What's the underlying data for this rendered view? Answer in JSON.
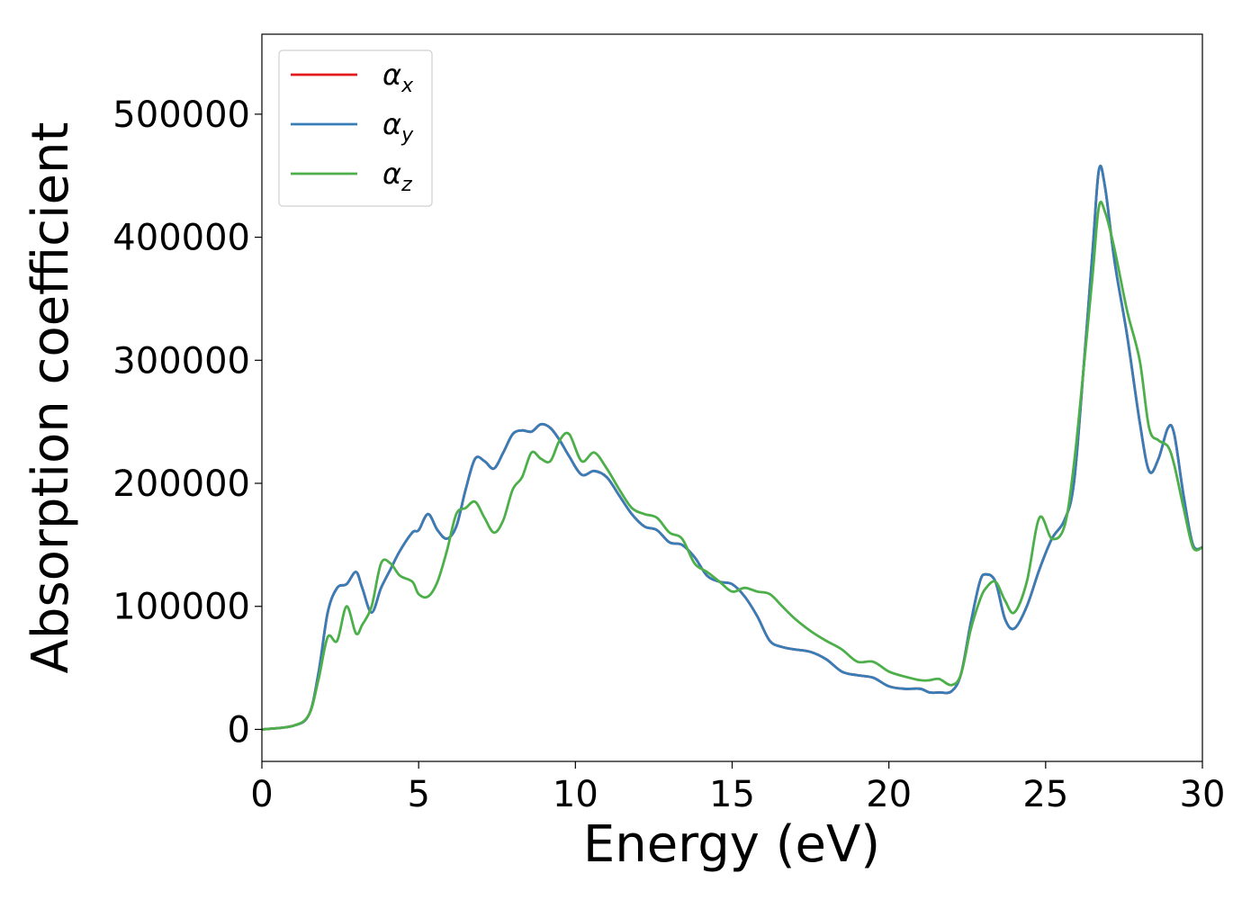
{
  "chart_data": {
    "type": "line",
    "title": "",
    "xlabel": "Energy (eV)",
    "ylabel": "Absorption coefficient",
    "xlim": [
      0,
      30
    ],
    "ylim": [
      -26000,
      565000
    ],
    "xticks": [
      0,
      5,
      10,
      15,
      20,
      25,
      30
    ],
    "xtick_labels": [
      "0",
      "5",
      "10",
      "15",
      "20",
      "25",
      "30"
    ],
    "yticks": [
      0,
      100000,
      200000,
      300000,
      400000,
      500000
    ],
    "ytick_labels": [
      "0",
      "100000",
      "200000",
      "300000",
      "400000",
      "500000"
    ],
    "grid": false,
    "legend_position": "top-left",
    "series": [
      {
        "name": "αx",
        "legend_base": "α",
        "legend_sub": "x",
        "color": "#e41a1c",
        "x": [
          0,
          1.0,
          1.5,
          1.8,
          2.1,
          2.4,
          2.7,
          3.0,
          3.2,
          3.5,
          3.8,
          4.1,
          4.4,
          4.8,
          5.0,
          5.3,
          5.6,
          5.9,
          6.2,
          6.5,
          6.8,
          7.1,
          7.4,
          7.7,
          8.0,
          8.3,
          8.6,
          8.9,
          9.2,
          9.5,
          9.8,
          10.2,
          10.6,
          11.0,
          11.4,
          11.8,
          12.2,
          12.6,
          13.0,
          13.4,
          13.8,
          14.2,
          14.6,
          15.0,
          15.4,
          15.8,
          16.2,
          16.6,
          17.0,
          17.5,
          18.0,
          18.5,
          19.0,
          19.5,
          20.0,
          20.5,
          21.0,
          21.3,
          21.6,
          22.0,
          22.3,
          22.6,
          22.9,
          23.1,
          23.4,
          23.7,
          24.0,
          24.4,
          24.8,
          25.2,
          25.6,
          25.9,
          26.2,
          26.5,
          26.7,
          26.9,
          27.2,
          27.6,
          28.0,
          28.3,
          28.6,
          28.9,
          29.1,
          29.4,
          29.7,
          30.0
        ],
        "y": [
          0,
          3000,
          12000,
          45000,
          95000,
          115000,
          118000,
          128000,
          115000,
          95000,
          115000,
          130000,
          145000,
          160000,
          162000,
          175000,
          162000,
          155000,
          165000,
          195000,
          220000,
          218000,
          212000,
          225000,
          240000,
          243000,
          242000,
          248000,
          245000,
          235000,
          222000,
          207000,
          210000,
          205000,
          190000,
          175000,
          165000,
          162000,
          152000,
          150000,
          140000,
          125000,
          120000,
          118000,
          108000,
          92000,
          72000,
          67000,
          65000,
          63000,
          57000,
          47000,
          44000,
          42000,
          35000,
          33000,
          33000,
          30000,
          30000,
          31000,
          45000,
          85000,
          120000,
          126000,
          120000,
          90000,
          82000,
          100000,
          130000,
          155000,
          170000,
          200000,
          290000,
          390000,
          455000,
          440000,
          380000,
          320000,
          250000,
          210000,
          220000,
          245000,
          240000,
          190000,
          150000,
          148000
        ]
      },
      {
        "name": "αy",
        "legend_base": "α",
        "legend_sub": "y",
        "color": "#377eb8",
        "x": [
          0,
          1.0,
          1.5,
          1.8,
          2.1,
          2.4,
          2.7,
          3.0,
          3.2,
          3.5,
          3.8,
          4.1,
          4.4,
          4.8,
          5.0,
          5.3,
          5.6,
          5.9,
          6.2,
          6.5,
          6.8,
          7.1,
          7.4,
          7.7,
          8.0,
          8.3,
          8.6,
          8.9,
          9.2,
          9.5,
          9.8,
          10.2,
          10.6,
          11.0,
          11.4,
          11.8,
          12.2,
          12.6,
          13.0,
          13.4,
          13.8,
          14.2,
          14.6,
          15.0,
          15.4,
          15.8,
          16.2,
          16.6,
          17.0,
          17.5,
          18.0,
          18.5,
          19.0,
          19.5,
          20.0,
          20.5,
          21.0,
          21.3,
          21.6,
          22.0,
          22.3,
          22.6,
          22.9,
          23.1,
          23.4,
          23.7,
          24.0,
          24.4,
          24.8,
          25.2,
          25.6,
          25.9,
          26.2,
          26.5,
          26.7,
          26.9,
          27.2,
          27.6,
          28.0,
          28.3,
          28.6,
          28.9,
          29.1,
          29.4,
          29.7,
          30.0
        ],
        "y": [
          0,
          3000,
          12000,
          45000,
          95000,
          115000,
          118000,
          128000,
          115000,
          95000,
          115000,
          130000,
          145000,
          160000,
          162000,
          175000,
          162000,
          155000,
          165000,
          195000,
          220000,
          218000,
          212000,
          225000,
          240000,
          243000,
          242000,
          248000,
          245000,
          235000,
          222000,
          207000,
          210000,
          205000,
          190000,
          175000,
          165000,
          162000,
          152000,
          150000,
          140000,
          125000,
          120000,
          118000,
          108000,
          92000,
          72000,
          67000,
          65000,
          63000,
          57000,
          47000,
          44000,
          42000,
          35000,
          33000,
          33000,
          30000,
          30000,
          31000,
          45000,
          85000,
          120000,
          126000,
          120000,
          90000,
          82000,
          100000,
          130000,
          155000,
          170000,
          200000,
          290000,
          390000,
          455000,
          440000,
          380000,
          320000,
          250000,
          210000,
          220000,
          245000,
          240000,
          190000,
          150000,
          148000
        ]
      },
      {
        "name": "αz",
        "legend_base": "α",
        "legend_sub": "z",
        "color": "#4daf4a",
        "x": [
          0,
          1.0,
          1.5,
          1.8,
          2.1,
          2.4,
          2.7,
          3.0,
          3.2,
          3.5,
          3.8,
          4.1,
          4.4,
          4.8,
          5.0,
          5.3,
          5.6,
          5.9,
          6.2,
          6.5,
          6.8,
          7.1,
          7.4,
          7.7,
          8.0,
          8.3,
          8.6,
          8.9,
          9.2,
          9.5,
          9.8,
          10.2,
          10.6,
          11.0,
          11.4,
          11.8,
          12.2,
          12.6,
          13.0,
          13.4,
          13.8,
          14.2,
          14.6,
          15.0,
          15.4,
          15.8,
          16.2,
          16.6,
          17.0,
          17.5,
          18.0,
          18.5,
          19.0,
          19.5,
          20.0,
          20.5,
          21.0,
          21.3,
          21.6,
          22.0,
          22.3,
          22.6,
          22.9,
          23.1,
          23.4,
          23.7,
          24.0,
          24.4,
          24.8,
          25.2,
          25.6,
          25.9,
          26.2,
          26.5,
          26.7,
          26.9,
          27.2,
          27.6,
          28.0,
          28.3,
          28.6,
          28.9,
          29.1,
          29.4,
          29.7,
          30.0
        ],
        "y": [
          0,
          3000,
          12000,
          40000,
          75000,
          72000,
          100000,
          78000,
          85000,
          100000,
          135000,
          135000,
          125000,
          120000,
          110000,
          108000,
          120000,
          145000,
          175000,
          180000,
          185000,
          172000,
          160000,
          170000,
          195000,
          205000,
          225000,
          220000,
          218000,
          235000,
          240000,
          218000,
          225000,
          212000,
          195000,
          180000,
          175000,
          172000,
          160000,
          155000,
          135000,
          128000,
          120000,
          112000,
          115000,
          112000,
          110000,
          100000,
          90000,
          80000,
          72000,
          65000,
          55000,
          55000,
          47000,
          43000,
          40000,
          40000,
          41000,
          36000,
          45000,
          80000,
          105000,
          115000,
          120000,
          105000,
          95000,
          120000,
          172000,
          155000,
          165000,
          215000,
          290000,
          370000,
          425000,
          420000,
          390000,
          340000,
          300000,
          245000,
          235000,
          230000,
          215000,
          180000,
          148000,
          148000
        ]
      }
    ]
  }
}
